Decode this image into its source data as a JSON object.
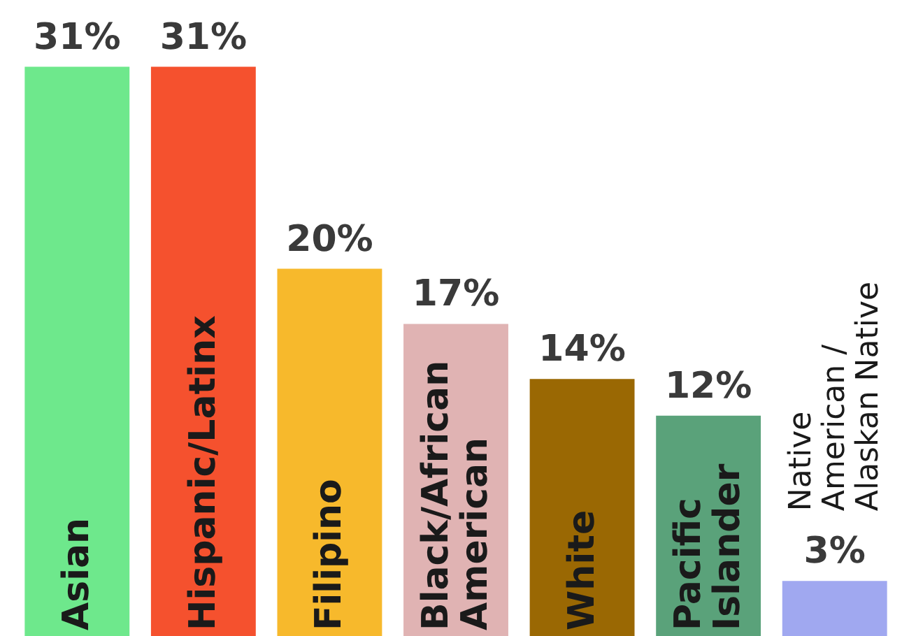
{
  "chart_data": {
    "type": "bar",
    "categories": [
      "Asian",
      "Hispanic/Latinx",
      "Filipino",
      "Black/African American",
      "White",
      "Pacific Islander",
      "Native American /Alaskan Native"
    ],
    "values": [
      31,
      31,
      20,
      17,
      14,
      12,
      3
    ],
    "colors": [
      "#6ee88c",
      "#f5512e",
      "#f7b92c",
      "#e0b3b3",
      "#9a6803",
      "#5aa27a",
      "#a0a8f0"
    ],
    "value_labels": [
      "31%",
      "31%",
      "20%",
      "17%",
      "14%",
      "12%",
      "3%"
    ]
  }
}
